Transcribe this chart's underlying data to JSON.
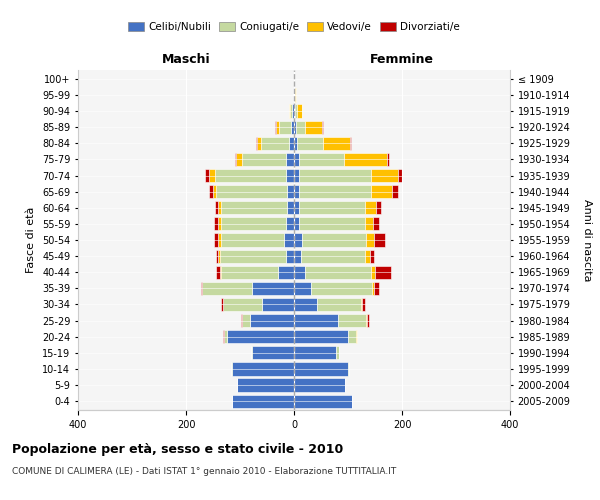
{
  "age_groups": [
    "0-4",
    "5-9",
    "10-14",
    "15-19",
    "20-24",
    "25-29",
    "30-34",
    "35-39",
    "40-44",
    "45-49",
    "50-54",
    "55-59",
    "60-64",
    "65-69",
    "70-74",
    "75-79",
    "80-84",
    "85-89",
    "90-94",
    "95-99",
    "100+"
  ],
  "birth_years": [
    "2005-2009",
    "2000-2004",
    "1995-1999",
    "1990-1994",
    "1985-1989",
    "1980-1984",
    "1975-1979",
    "1970-1974",
    "1965-1969",
    "1960-1964",
    "1955-1959",
    "1950-1954",
    "1945-1949",
    "1940-1944",
    "1935-1939",
    "1930-1934",
    "1925-1929",
    "1920-1924",
    "1915-1919",
    "1910-1914",
    "≤ 1909"
  ],
  "maschi": {
    "celibi": [
      115,
      105,
      115,
      78,
      125,
      82,
      60,
      78,
      30,
      15,
      18,
      14,
      13,
      13,
      15,
      15,
      10,
      6,
      3,
      1,
      0
    ],
    "coniugati": [
      0,
      0,
      1,
      2,
      5,
      15,
      72,
      92,
      105,
      122,
      118,
      122,
      122,
      132,
      132,
      82,
      52,
      22,
      5,
      1,
      0
    ],
    "vedovi": [
      0,
      0,
      0,
      0,
      0,
      0,
      0,
      1,
      2,
      3,
      4,
      5,
      5,
      5,
      10,
      10,
      6,
      5,
      1,
      0,
      0
    ],
    "divorziati": [
      0,
      0,
      0,
      0,
      1,
      2,
      3,
      2,
      8,
      5,
      8,
      8,
      7,
      8,
      8,
      2,
      2,
      2,
      0,
      0,
      0
    ]
  },
  "femmine": {
    "nubili": [
      108,
      95,
      100,
      78,
      100,
      82,
      42,
      32,
      20,
      13,
      14,
      10,
      10,
      10,
      10,
      10,
      5,
      3,
      2,
      1,
      0
    ],
    "coniugate": [
      0,
      0,
      2,
      5,
      15,
      52,
      82,
      112,
      122,
      118,
      120,
      122,
      122,
      132,
      132,
      82,
      48,
      18,
      4,
      1,
      0
    ],
    "vedove": [
      0,
      0,
      0,
      0,
      1,
      2,
      2,
      5,
      8,
      10,
      15,
      15,
      20,
      40,
      50,
      80,
      50,
      30,
      8,
      2,
      0
    ],
    "divorziate": [
      0,
      0,
      0,
      0,
      1,
      2,
      5,
      8,
      30,
      8,
      20,
      10,
      10,
      10,
      8,
      4,
      3,
      2,
      0,
      0,
      0
    ]
  },
  "colors": {
    "celibi": "#4472c4",
    "coniugati": "#c5d9a0",
    "vedovi": "#ffc000",
    "divorziati": "#c00000"
  },
  "xlim": 400,
  "title": "Popolazione per età, sesso e stato civile - 2010",
  "subtitle": "COMUNE DI CALIMERA (LE) - Dati ISTAT 1° gennaio 2010 - Elaborazione TUTTITALIA.IT",
  "ylabel_left": "Fasce di età",
  "ylabel_right": "Anni di nascita",
  "xlabel_left": "Maschi",
  "xlabel_right": "Femmine"
}
